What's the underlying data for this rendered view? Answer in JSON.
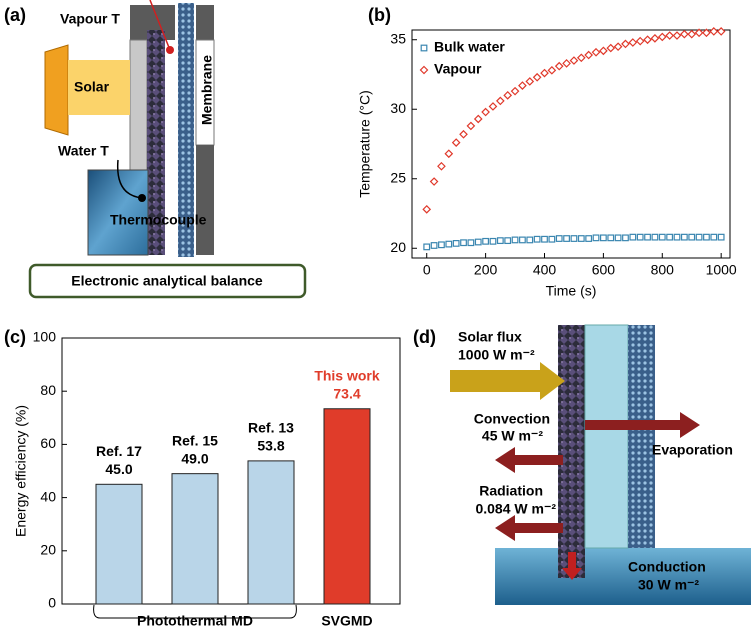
{
  "chart_data": [
    {
      "type": "scatter",
      "panel_label": "(b)",
      "x_label": "Time (s)",
      "y_label": "Temperature (°C)",
      "x": [
        0,
        25,
        50,
        75,
        100,
        125,
        150,
        175,
        200,
        225,
        250,
        275,
        300,
        325,
        350,
        375,
        400,
        425,
        450,
        475,
        500,
        525,
        550,
        575,
        600,
        625,
        650,
        675,
        700,
        725,
        750,
        775,
        800,
        825,
        850,
        875,
        900,
        925,
        950,
        975,
        1000
      ],
      "series": [
        {
          "name": "Bulk water",
          "color": "#3a86b0",
          "marker": "square",
          "values": [
            20.1,
            20.2,
            20.25,
            20.3,
            20.35,
            20.4,
            20.4,
            20.45,
            20.5,
            20.5,
            20.55,
            20.55,
            20.6,
            20.6,
            20.6,
            20.65,
            20.65,
            20.65,
            20.7,
            20.7,
            20.7,
            20.7,
            20.7,
            20.75,
            20.75,
            20.75,
            20.75,
            20.75,
            20.8,
            20.8,
            20.8,
            20.8,
            20.8,
            20.8,
            20.8,
            20.8,
            20.8,
            20.8,
            20.8,
            20.8,
            20.8
          ]
        },
        {
          "name": "Vapour",
          "color": "#e0392b",
          "marker": "diamond",
          "values": [
            22.8,
            24.8,
            25.9,
            26.8,
            27.6,
            28.2,
            28.8,
            29.3,
            29.8,
            30.2,
            30.6,
            31.0,
            31.3,
            31.7,
            32.0,
            32.3,
            32.6,
            32.8,
            33.1,
            33.3,
            33.5,
            33.7,
            33.9,
            34.1,
            34.2,
            34.4,
            34.5,
            34.7,
            34.8,
            34.9,
            35.0,
            35.1,
            35.2,
            35.3,
            35.3,
            35.4,
            35.4,
            35.5,
            35.5,
            35.6,
            35.6
          ]
        }
      ],
      "xlim": [
        -50,
        1030
      ],
      "xticks": [
        0,
        200,
        400,
        600,
        800,
        1000
      ],
      "ylim": [
        19.3,
        35.7
      ],
      "yticks": [
        20,
        25,
        30,
        35
      ],
      "legend": "upper left"
    },
    {
      "type": "bar",
      "panel_label": "(c)",
      "y_label": "Energy efficiency (%)",
      "categories": [
        "Ref. 17",
        "Ref. 15",
        "Ref. 13",
        "This work"
      ],
      "values": [
        45.0,
        49.0,
        53.8,
        73.4
      ],
      "value_labels": [
        "45.0",
        "49.0",
        "53.8",
        "73.4"
      ],
      "colors": [
        "#b9d5e8",
        "#b9d5e8",
        "#b9d5e8",
        "#e03c2a"
      ],
      "label_colors": [
        "#000000",
        "#000000",
        "#000000",
        "#e03c2a"
      ],
      "x_groups": [
        "Photothermal MD",
        "Photothermal MD",
        "Photothermal MD",
        "SVGMD"
      ],
      "ylim": [
        0,
        100
      ],
      "yticks": [
        0,
        20,
        40,
        60,
        80,
        100
      ]
    }
  ],
  "panel_a": {
    "label": "(a)",
    "vapour": "Vapour T",
    "solar": "Solar",
    "membrane": "Membrane",
    "water": "Water T",
    "thermocouple": "Thermocouple",
    "balance": "Electronic analytical balance"
  },
  "panel_d": {
    "label": "(d)",
    "solar": "Solar flux",
    "solar_value": "1000 W m⁻²",
    "convection": "Convection",
    "convection_value": "45 W m⁻²",
    "evaporation": "Evaporation",
    "radiation": "Radiation",
    "radiation_value": "0.084 W m⁻²",
    "conduction": "Conduction",
    "conduction_value": "30 W m⁻²"
  }
}
